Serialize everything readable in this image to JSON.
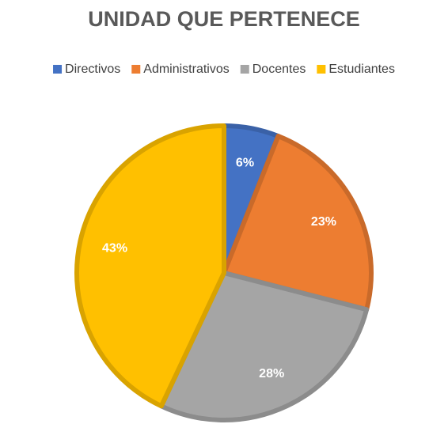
{
  "chart_data": {
    "type": "pie",
    "title": "UNIDAD QUE PERTENECE",
    "categories": [
      "Directivos",
      "Administrativos",
      "Docentes",
      "Estudiantes"
    ],
    "values": [
      6,
      23,
      28,
      43
    ],
    "value_labels": [
      "6%",
      "23%",
      "28%",
      "43%"
    ],
    "colors": [
      "#4472c4",
      "#ed7d31",
      "#a5a5a5",
      "#ffc000"
    ],
    "legend": "top"
  }
}
